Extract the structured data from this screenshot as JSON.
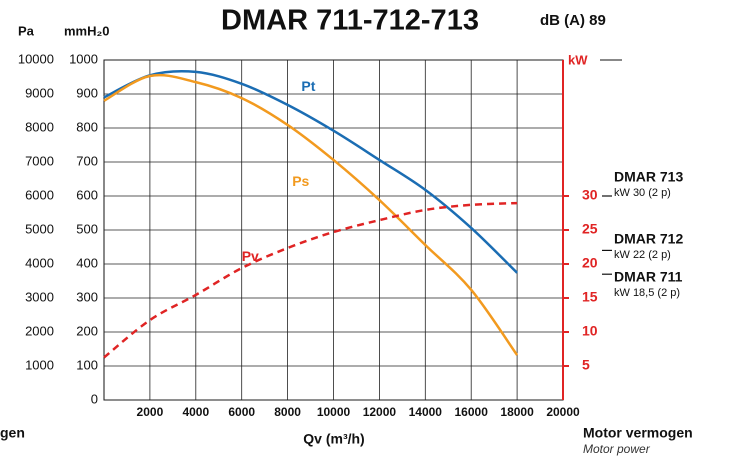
{
  "chart_data": {
    "type": "line",
    "title": "DMAR 711-712-713",
    "noise": "dB (A) 89",
    "pa_label": "Pa",
    "mm_label": "mmH₂0",
    "kw_label": "kW",
    "xlabel": "Qv (m³/h)",
    "footer": "Motor vermogen",
    "footer_sub": "Motor power",
    "cut_text": "gen",
    "x": [
      0,
      2000,
      4000,
      6000,
      8000,
      10000,
      12000,
      14000,
      16000,
      18000
    ],
    "xlim": [
      0,
      20000
    ],
    "xticks": [
      2000,
      4000,
      6000,
      8000,
      10000,
      12000,
      14000,
      16000,
      18000,
      20000
    ],
    "ylim": [
      0,
      1000
    ],
    "yticks": [
      0,
      100,
      200,
      300,
      400,
      500,
      600,
      700,
      800,
      900,
      1000
    ],
    "pa_lim": [
      0,
      10000
    ],
    "pa_ticks": [
      1000,
      2000,
      3000,
      4000,
      5000,
      6000,
      7000,
      8000,
      9000,
      10000
    ],
    "y2lim": [
      0,
      50
    ],
    "y2ticks": [
      5,
      10,
      15,
      20,
      25,
      30
    ],
    "grid": true,
    "series": [
      {
        "name": "Pt",
        "color": "#1b6db3",
        "dashed": false,
        "values": [
          890,
          955,
          965,
          930,
          868,
          792,
          706,
          618,
          506,
          374
        ]
      },
      {
        "name": "Ps",
        "color": "#f29a1f",
        "dashed": false,
        "values": [
          880,
          953,
          935,
          888,
          809,
          706,
          588,
          456,
          324,
          132
        ]
      },
      {
        "name": "Pv",
        "color": "#e02424",
        "dashed": true,
        "values": [
          125,
          235,
          309,
          388,
          447,
          494,
          529,
          559,
          574,
          579
        ]
      }
    ],
    "motors": [
      {
        "name": "DMAR 713",
        "label": "kW 30 (2 p)",
        "kw": 30
      },
      {
        "name": "DMAR 712",
        "label": "kW 22 (2 p)",
        "kw": 22
      },
      {
        "name": "DMAR 711",
        "label": "kW 18,5 (2 p)",
        "kw": 18.5
      }
    ]
  }
}
